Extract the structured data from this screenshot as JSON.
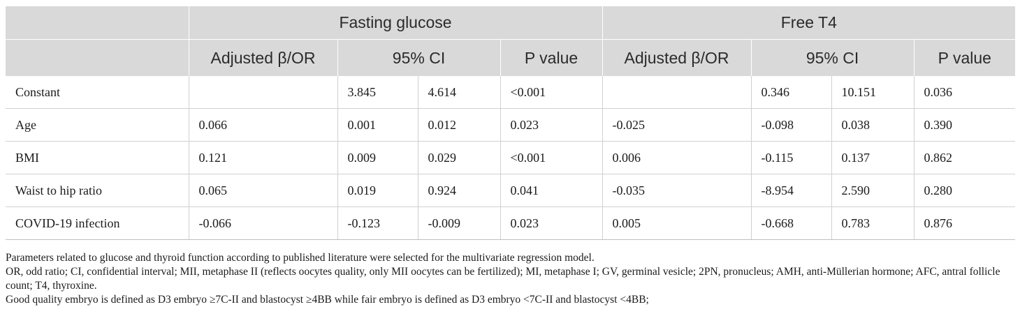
{
  "header": {
    "group1": "Fasting glucose",
    "group2": "Free T4",
    "col_beta": "Adjusted β/OR",
    "col_ci": "95% CI",
    "col_p": "P value"
  },
  "rows": [
    {
      "label": "Constant",
      "fg_beta": "",
      "fg_ci_low": "3.845",
      "fg_ci_high": "4.614",
      "fg_p": "<0.001",
      "t4_beta": "",
      "t4_ci_low": "0.346",
      "t4_ci_high": "10.151",
      "t4_p": "0.036"
    },
    {
      "label": "Age",
      "fg_beta": "0.066",
      "fg_ci_low": "0.001",
      "fg_ci_high": "0.012",
      "fg_p": "0.023",
      "t4_beta": "-0.025",
      "t4_ci_low": "-0.098",
      "t4_ci_high": "0.038",
      "t4_p": "0.390"
    },
    {
      "label": "BMI",
      "fg_beta": "0.121",
      "fg_ci_low": "0.009",
      "fg_ci_high": "0.029",
      "fg_p": "<0.001",
      "t4_beta": "0.006",
      "t4_ci_low": "-0.115",
      "t4_ci_high": "0.137",
      "t4_p": "0.862"
    },
    {
      "label": "Waist to hip ratio",
      "fg_beta": "0.065",
      "fg_ci_low": "0.019",
      "fg_ci_high": "0.924",
      "fg_p": "0.041",
      "t4_beta": "-0.035",
      "t4_ci_low": "-8.954",
      "t4_ci_high": "2.590",
      "t4_p": "0.280"
    },
    {
      "label": "COVID-19 infection",
      "fg_beta": "-0.066",
      "fg_ci_low": "-0.123",
      "fg_ci_high": "-0.009",
      "fg_p": "0.023",
      "t4_beta": "0.005",
      "t4_ci_low": "-0.668",
      "t4_ci_high": "0.783",
      "t4_p": "0.876"
    }
  ],
  "notes": {
    "note1": "Parameters related to glucose and thyroid function according to published literature were selected for the multivariate regression model.",
    "note2": "OR, odd ratio; CI, confidential interval; MII, metaphase II (reflects oocytes quality, only MII oocytes can be fertilized); MI, metaphase I; GV, germinal vesicle; 2PN, pronucleus; AMH, anti-Müllerian hormone; AFC, antral follicle count; T4, thyroxine.",
    "note3": "Good quality embryo is defined as D3 embryo ≥7C-II and blastocyst ≥4BB while fair embryo is defined as D3 embryo <7C-II and blastocyst <4BB;"
  }
}
